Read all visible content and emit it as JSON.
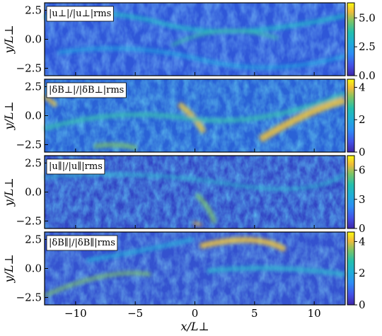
{
  "chart_data": [
    {
      "type": "heatmap",
      "label": "|u⊥|/|u⊥|rms",
      "ylabel": "y/L⊥",
      "xlim": [
        -12.6,
        12.6
      ],
      "ylim": [
        -3.14,
        3.14
      ],
      "yticks": [
        -2.5,
        0.0,
        2.5
      ],
      "ytick_labels": [
        "−2.5",
        "0.0",
        "2.5"
      ],
      "colorbar": {
        "range": [
          0,
          6.3
        ],
        "ticks": [
          0.0,
          2.5,
          5.0
        ],
        "tick_labels": [
          "0.0",
          "2.5",
          "5.0"
        ]
      }
    },
    {
      "type": "heatmap",
      "label": "|δB⊥|/|δB⊥|rms",
      "ylabel": "y/L⊥",
      "xlim": [
        -12.6,
        12.6
      ],
      "ylim": [
        -3.14,
        3.14
      ],
      "yticks": [
        -2.5,
        0.0,
        2.5
      ],
      "ytick_labels": [
        "−2.5",
        "0.0",
        "2.5"
      ],
      "colorbar": {
        "range": [
          0,
          4.5
        ],
        "ticks": [
          0,
          2,
          4
        ],
        "tick_labels": [
          "0",
          "2",
          "4"
        ]
      }
    },
    {
      "type": "heatmap",
      "label": "|u∥|/|u∥|rms",
      "ylabel": "y/L⊥",
      "xlim": [
        -12.6,
        12.6
      ],
      "ylim": [
        -3.14,
        3.14
      ],
      "yticks": [
        -2.5,
        0.0,
        2.5
      ],
      "ytick_labels": [
        "−2.5",
        "0.0",
        "2.5"
      ],
      "colorbar": {
        "range": [
          0,
          7.5
        ],
        "ticks": [
          0,
          3,
          6
        ],
        "tick_labels": [
          "0",
          "3",
          "6"
        ]
      }
    },
    {
      "type": "heatmap",
      "label": "|δB∥|/|δB∥|rms",
      "ylabel": "y/L⊥",
      "xlabel": "x/L⊥",
      "xlim": [
        -12.6,
        12.6
      ],
      "ylim": [
        -3.14,
        3.14
      ],
      "xticks": [
        -10,
        -5,
        0,
        5,
        10
      ],
      "xtick_labels": [
        "−10",
        "−5",
        "0",
        "5",
        "10"
      ],
      "yticks": [
        -2.5,
        0.0,
        2.5
      ],
      "ytick_labels": [
        "−2.5",
        "0.0",
        "2.5"
      ],
      "colorbar": {
        "range": [
          0,
          4.6
        ],
        "ticks": [
          0,
          2,
          4
        ],
        "tick_labels": [
          "0",
          "2",
          "4"
        ]
      }
    }
  ]
}
